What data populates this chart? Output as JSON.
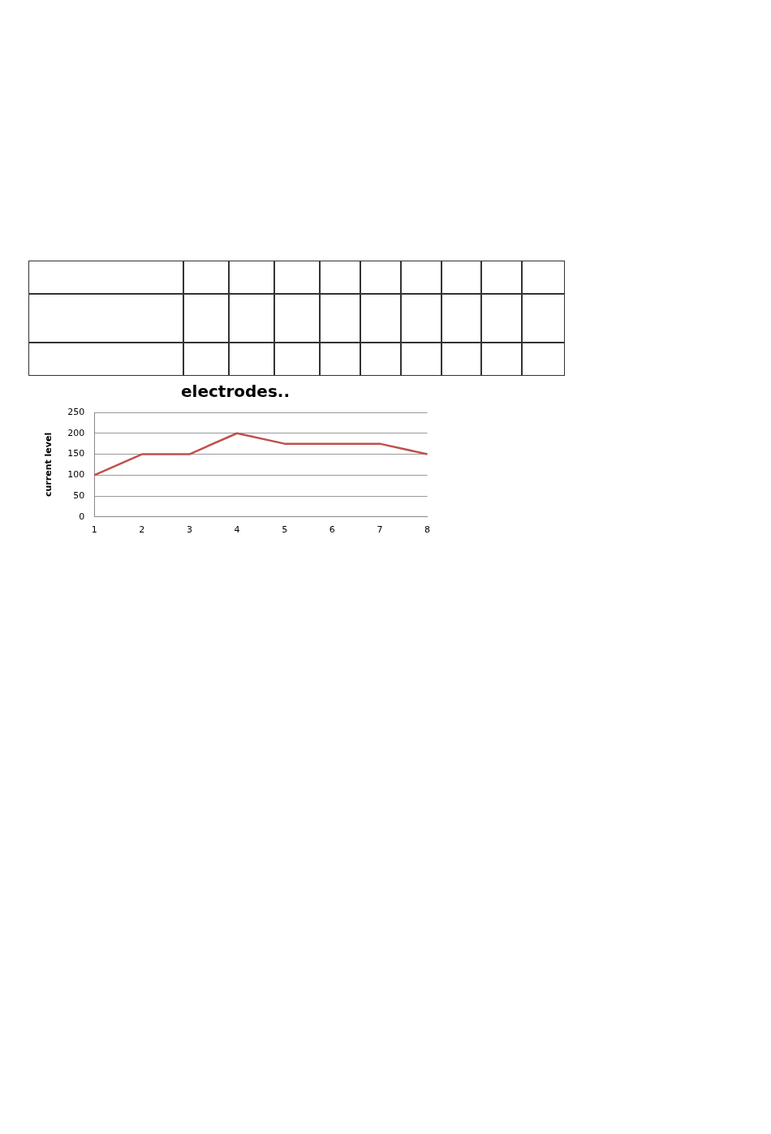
{
  "chart_data": {
    "type": "line",
    "title": "electrodes..",
    "ylabel": "current level",
    "categories": [
      "1",
      "2",
      "3",
      "4",
      "5",
      "6",
      "7",
      "8"
    ],
    "series": [
      {
        "color": "#c0504d",
        "values": [
          100,
          150,
          150,
          200,
          175,
          175,
          175,
          150
        ]
      }
    ],
    "ylim": [
      0,
      250
    ],
    "yticks": [
      0,
      50,
      100,
      150,
      200,
      250
    ],
    "grid": "y",
    "legend": false,
    "marker": "none",
    "line_style": "solid"
  }
}
